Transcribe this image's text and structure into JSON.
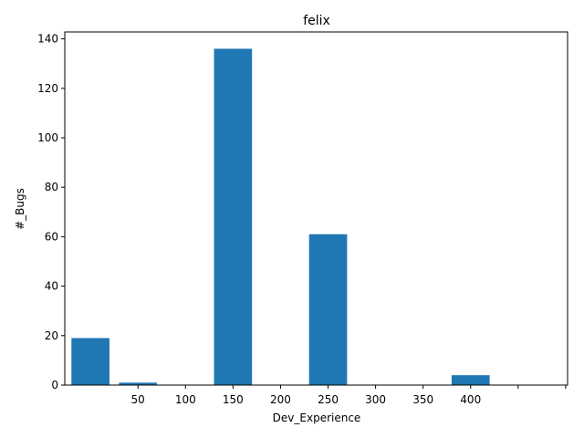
{
  "chart_data": {
    "type": "bar",
    "title": "felix",
    "xlabel": "Dev_Experience",
    "ylabel": "#_Bugs",
    "bars": [
      {
        "x": 0,
        "value": 19
      },
      {
        "x": 50,
        "value": 1
      },
      {
        "x": 100,
        "value": 0
      },
      {
        "x": 150,
        "value": 136
      },
      {
        "x": 200,
        "value": 0
      },
      {
        "x": 250,
        "value": 61
      },
      {
        "x": 300,
        "value": 0
      },
      {
        "x": 350,
        "value": 0
      },
      {
        "x": 400,
        "value": 4
      },
      {
        "x": 450,
        "value": 0
      }
    ],
    "bar_width": 40,
    "xticks": [
      50,
      100,
      150,
      200,
      250,
      300,
      350,
      400,
      450,
      500
    ],
    "xtick_labels": [
      "50",
      "100",
      "150",
      "200",
      "250",
      "300",
      "350",
      "400",
      "",
      ""
    ],
    "yticks": [
      0,
      20,
      40,
      60,
      80,
      100,
      120,
      140
    ],
    "xlim": [
      -27,
      502
    ],
    "ylim": [
      0,
      142.8
    ],
    "grid": false,
    "legend": "none",
    "bar_color": "#1f77b4"
  }
}
